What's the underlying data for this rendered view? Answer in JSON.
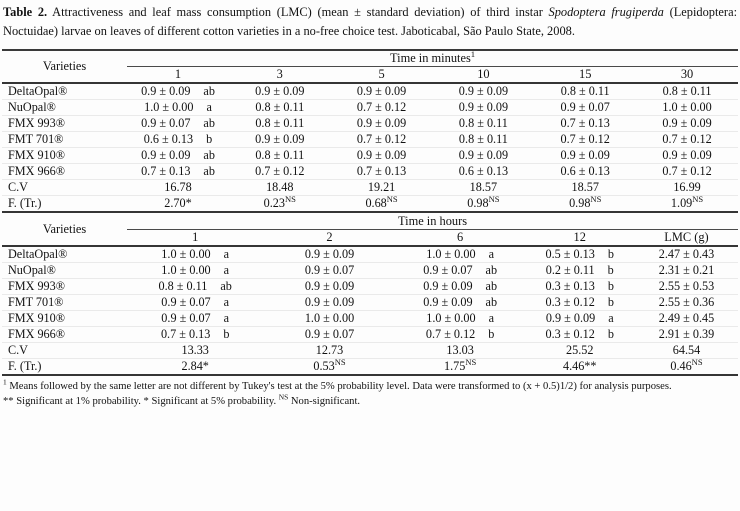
{
  "colors": {
    "ink": "#121212",
    "rule_dark": "#3a3a3a",
    "row_line": "#eaeaea",
    "background": "#fdfdfd"
  },
  "title": {
    "label": "Table 2.",
    "text_before_italic": " Attractiveness and leaf mass consumption (LMC) (mean ± standard deviation) of third instar ",
    "italic": "Spodoptera frugiperda",
    "text_after_italic": " (Lepidoptera: Noctuidae) larvae on leaves of different cotton varieties in a no-free choice test. Jaboticabal, São Paulo State, 2008."
  },
  "table_minutes": {
    "varieties_header": "Varieties",
    "span_header": "Time in minutes",
    "span_header_sup": "1",
    "columns": [
      "1",
      "3",
      "5",
      "10",
      "15",
      "30"
    ],
    "rows": [
      {
        "variety": "DeltaOpal®",
        "cells": [
          {
            "v": "0.9 ± 0.09",
            "l": "ab"
          },
          {
            "v": "0.9 ± 0.09",
            "l": ""
          },
          {
            "v": "0.9 ± 0.09",
            "l": ""
          },
          {
            "v": "0.9 ± 0.09",
            "l": ""
          },
          {
            "v": "0.8 ± 0.11",
            "l": ""
          },
          {
            "v": "0.8 ± 0.11",
            "l": ""
          }
        ]
      },
      {
        "variety": "NuOpal®",
        "cells": [
          {
            "v": "1.0 ± 0.00",
            "l": "a"
          },
          {
            "v": "0.8 ± 0.11",
            "l": ""
          },
          {
            "v": "0.7 ± 0.12",
            "l": ""
          },
          {
            "v": "0.9 ± 0.09",
            "l": ""
          },
          {
            "v": "0.9 ± 0.07",
            "l": ""
          },
          {
            "v": "1.0 ± 0.00",
            "l": ""
          }
        ]
      },
      {
        "variety": "FMX 993®",
        "cells": [
          {
            "v": "0.9 ± 0.07",
            "l": "ab"
          },
          {
            "v": "0.8 ± 0.11",
            "l": ""
          },
          {
            "v": "0.9 ± 0.09",
            "l": ""
          },
          {
            "v": "0.8 ± 0.11",
            "l": ""
          },
          {
            "v": "0.7 ± 0.13",
            "l": ""
          },
          {
            "v": "0.9 ± 0.09",
            "l": ""
          }
        ]
      },
      {
        "variety": "FMT 701®",
        "cells": [
          {
            "v": "0.6 ± 0.13",
            "l": "b"
          },
          {
            "v": "0.9 ± 0.09",
            "l": ""
          },
          {
            "v": "0.7 ± 0.12",
            "l": ""
          },
          {
            "v": "0.8 ± 0.11",
            "l": ""
          },
          {
            "v": "0.7 ± 0.12",
            "l": ""
          },
          {
            "v": "0.7 ± 0.12",
            "l": ""
          }
        ]
      },
      {
        "variety": "FMX 910®",
        "cells": [
          {
            "v": "0.9 ± 0.09",
            "l": "ab"
          },
          {
            "v": "0.8 ± 0.11",
            "l": ""
          },
          {
            "v": "0.9 ± 0.09",
            "l": ""
          },
          {
            "v": "0.9 ± 0.09",
            "l": ""
          },
          {
            "v": "0.9 ± 0.09",
            "l": ""
          },
          {
            "v": "0.9 ± 0.09",
            "l": ""
          }
        ]
      },
      {
        "variety": "FMX 966®",
        "cells": [
          {
            "v": "0.7 ± 0.13",
            "l": "ab"
          },
          {
            "v": "0.7 ± 0.12",
            "l": ""
          },
          {
            "v": "0.7 ± 0.13",
            "l": ""
          },
          {
            "v": "0.6 ± 0.13",
            "l": ""
          },
          {
            "v": "0.6 ± 0.13",
            "l": ""
          },
          {
            "v": "0.7 ± 0.12",
            "l": ""
          }
        ]
      }
    ],
    "cv_label": "C.V",
    "cv_values": [
      "16.78",
      "18.48",
      "19.21",
      "18.57",
      "18.57",
      "16.99"
    ],
    "f_label": "F. (Tr.)",
    "f_values": [
      {
        "base": "2.70*",
        "sup": ""
      },
      {
        "base": "0.23",
        "sup": "NS"
      },
      {
        "base": "0.68",
        "sup": "NS"
      },
      {
        "base": "0.98",
        "sup": "NS"
      },
      {
        "base": "0.98",
        "sup": "NS"
      },
      {
        "base": "1.09",
        "sup": "NS"
      }
    ]
  },
  "table_hours": {
    "varieties_header": "Varieties",
    "span_header": "Time in hours",
    "columns": [
      "1",
      "2",
      "6",
      "12",
      "LMC (g)"
    ],
    "rows": [
      {
        "variety": "DeltaOpal®",
        "cells": [
          {
            "v": "1.0 ± 0.00",
            "l": "a"
          },
          {
            "v": "0.9 ± 0.09",
            "l": ""
          },
          {
            "v": "1.0 ± 0.00",
            "l": "a"
          },
          {
            "v": "0.5 ± 0.13",
            "l": "b"
          },
          {
            "v": "2.47 ± 0.43",
            "l": ""
          }
        ]
      },
      {
        "variety": "NuOpal®",
        "cells": [
          {
            "v": "1.0 ± 0.00",
            "l": "a"
          },
          {
            "v": "0.9 ± 0.07",
            "l": ""
          },
          {
            "v": "0.9 ± 0.07",
            "l": "ab"
          },
          {
            "v": "0.2 ± 0.11",
            "l": "b"
          },
          {
            "v": "2.31 ± 0.21",
            "l": ""
          }
        ]
      },
      {
        "variety": "FMX 993®",
        "cells": [
          {
            "v": "0.8 ± 0.11",
            "l": "ab"
          },
          {
            "v": "0.9 ± 0.09",
            "l": ""
          },
          {
            "v": "0.9 ± 0.09",
            "l": "ab"
          },
          {
            "v": "0.3 ± 0.13",
            "l": "b"
          },
          {
            "v": "2.55 ± 0.53",
            "l": ""
          }
        ]
      },
      {
        "variety": "FMT 701®",
        "cells": [
          {
            "v": "0.9 ± 0.07",
            "l": "a"
          },
          {
            "v": "0.9 ± 0.09",
            "l": ""
          },
          {
            "v": "0.9 ± 0.09",
            "l": "ab"
          },
          {
            "v": "0.3 ± 0.12",
            "l": "b"
          },
          {
            "v": "2.55 ± 0.36",
            "l": ""
          }
        ]
      },
      {
        "variety": "FMX 910®",
        "cells": [
          {
            "v": "0.9 ± 0.07",
            "l": "a"
          },
          {
            "v": "1.0 ± 0.00",
            "l": ""
          },
          {
            "v": "1.0 ± 0.00",
            "l": "a"
          },
          {
            "v": "0.9 ± 0.09",
            "l": "a"
          },
          {
            "v": "2.49 ± 0.45",
            "l": ""
          }
        ]
      },
      {
        "variety": "FMX 966®",
        "cells": [
          {
            "v": "0.7 ± 0.13",
            "l": "b"
          },
          {
            "v": "0.9 ± 0.07",
            "l": ""
          },
          {
            "v": "0.7 ± 0.12",
            "l": "b"
          },
          {
            "v": "0.3 ± 0.12",
            "l": "b"
          },
          {
            "v": "2.91 ± 0.39",
            "l": ""
          }
        ]
      }
    ],
    "cv_label": "C.V",
    "cv_values": [
      "13.33",
      "12.73",
      "13.03",
      "25.52",
      "64.54"
    ],
    "f_label": "F. (Tr.)",
    "f_values": [
      {
        "base": "2.84*",
        "sup": ""
      },
      {
        "base": "0.53",
        "sup": "NS"
      },
      {
        "base": "1.75",
        "sup": "NS"
      },
      {
        "base": "4.46**",
        "sup": ""
      },
      {
        "base": "0.46",
        "sup": "NS"
      }
    ]
  },
  "footnotes": {
    "line1_sup": "1",
    "line1": " Means followed by the same letter are not different by Tukey's test at the 5% probability level. Data were transformed to (x + 0.5)1/2) for analysis purposes.",
    "line2_pre": "** Significant at 1% probability. * Significant at 5% probability. ",
    "line2_sup": "NS",
    "line2_post": " Non-significant."
  }
}
